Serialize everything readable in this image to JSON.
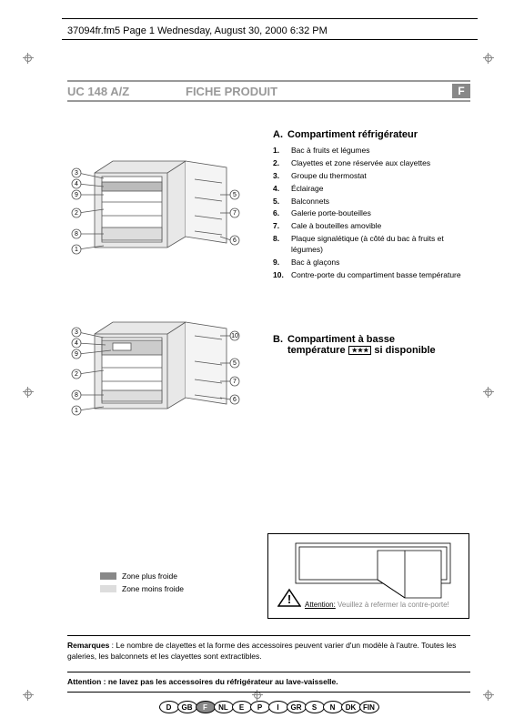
{
  "file_header": "37094fr.fm5  Page 1  Wednesday, August 30, 2000  6:32 PM",
  "model_code": "UC 148 A/Z",
  "document_title": "FICHE PRODUIT",
  "lang_badge": "F",
  "section_a": {
    "letter": "A.",
    "title": "Compartiment réfrigérateur",
    "items": [
      {
        "n": "1.",
        "t": "Bac à fruits et légumes"
      },
      {
        "n": "2.",
        "t": "Clayettes et zone réservée aux clayettes"
      },
      {
        "n": "3.",
        "t": "Groupe du thermostat"
      },
      {
        "n": "4.",
        "t": "Éclairage"
      },
      {
        "n": "5.",
        "t": "Balconnets"
      },
      {
        "n": "6.",
        "t": "Galerie porte-bouteilles"
      },
      {
        "n": "7.",
        "t": "Cale à bouteilles amovible"
      },
      {
        "n": "8.",
        "t": "Plaque signalétique (à côté du bac à fruits et légumes)"
      },
      {
        "n": "9.",
        "t": "Bac à glaçons"
      },
      {
        "n": "10.",
        "t": "Contre-porte du compartiment basse température"
      }
    ]
  },
  "section_b": {
    "letter": "B.",
    "title_line1": "Compartiment à basse",
    "title_line2_pre": "température ",
    "title_line2_post": " si disponible",
    "stars": "★ ★ ★"
  },
  "legend": {
    "colder": {
      "label": "Zone plus froide",
      "color": "#888888"
    },
    "less_cold": {
      "label": "Zone moins froide",
      "color": "#dddddd"
    }
  },
  "warning": {
    "attention": "Attention:",
    "text": " Veuillez à refermer la contre-porte!"
  },
  "remarks": {
    "label": "Remarques",
    "text": " : Le nombre de clayettes et la forme des accessoires peuvent varier d'un modèle à l'autre. Toutes les galeries, les balconnets et les clayettes sont extractibles."
  },
  "attention_footer": "Attention : ne lavez pas les accessoires du réfrigérateur au lave-vaisselle.",
  "languages": [
    "D",
    "GB",
    "F",
    "NL",
    "E",
    "P",
    "I",
    "GR",
    "S",
    "N",
    "DK",
    "FIN"
  ],
  "active_language": "F",
  "diagram": {
    "callouts_a": [
      "1",
      "2",
      "3",
      "4",
      "5",
      "6",
      "7",
      "8",
      "9"
    ],
    "callouts_b": [
      "1",
      "2",
      "3",
      "4",
      "5",
      "6",
      "7",
      "8",
      "9",
      "10"
    ],
    "colors": {
      "line": "#555555",
      "shelf": "#bbbbbb",
      "body": "#e8e8e8",
      "dark": "#888888"
    }
  }
}
